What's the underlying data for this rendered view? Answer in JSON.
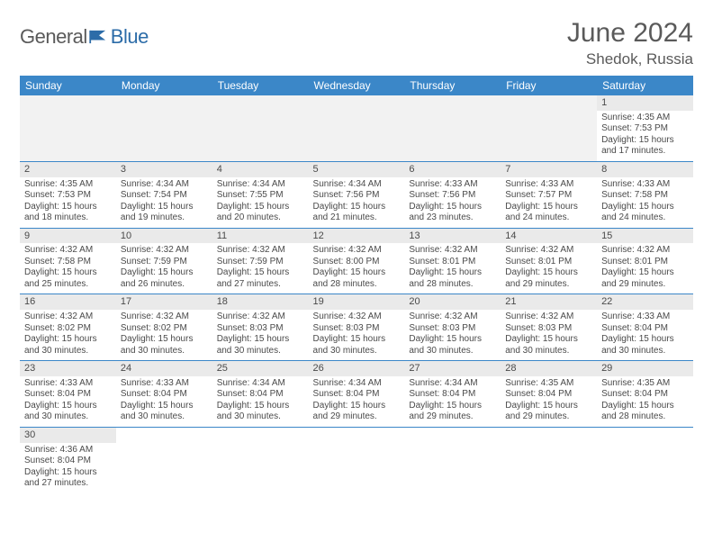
{
  "logo": {
    "general": "General",
    "blue": "Blue"
  },
  "title": {
    "month_year": "June 2024",
    "location": "Shedok, Russia"
  },
  "colors": {
    "header_bg": "#3b87c8",
    "header_text": "#ffffff",
    "daynum_bg": "#eaeaea",
    "blank_bg": "#f2f2f2",
    "cell_border": "#3b87c8",
    "text": "#4a4a4a",
    "logo_gray": "#5a5a5a",
    "logo_blue": "#2c6ca8"
  },
  "weekdays": [
    "Sunday",
    "Monday",
    "Tuesday",
    "Wednesday",
    "Thursday",
    "Friday",
    "Saturday"
  ],
  "grid": [
    [
      null,
      null,
      null,
      null,
      null,
      null,
      {
        "n": "1",
        "sr": "Sunrise: 4:35 AM",
        "ss": "Sunset: 7:53 PM",
        "d1": "Daylight: 15 hours",
        "d2": "and 17 minutes."
      }
    ],
    [
      {
        "n": "2",
        "sr": "Sunrise: 4:35 AM",
        "ss": "Sunset: 7:53 PM",
        "d1": "Daylight: 15 hours",
        "d2": "and 18 minutes."
      },
      {
        "n": "3",
        "sr": "Sunrise: 4:34 AM",
        "ss": "Sunset: 7:54 PM",
        "d1": "Daylight: 15 hours",
        "d2": "and 19 minutes."
      },
      {
        "n": "4",
        "sr": "Sunrise: 4:34 AM",
        "ss": "Sunset: 7:55 PM",
        "d1": "Daylight: 15 hours",
        "d2": "and 20 minutes."
      },
      {
        "n": "5",
        "sr": "Sunrise: 4:34 AM",
        "ss": "Sunset: 7:56 PM",
        "d1": "Daylight: 15 hours",
        "d2": "and 21 minutes."
      },
      {
        "n": "6",
        "sr": "Sunrise: 4:33 AM",
        "ss": "Sunset: 7:56 PM",
        "d1": "Daylight: 15 hours",
        "d2": "and 23 minutes."
      },
      {
        "n": "7",
        "sr": "Sunrise: 4:33 AM",
        "ss": "Sunset: 7:57 PM",
        "d1": "Daylight: 15 hours",
        "d2": "and 24 minutes."
      },
      {
        "n": "8",
        "sr": "Sunrise: 4:33 AM",
        "ss": "Sunset: 7:58 PM",
        "d1": "Daylight: 15 hours",
        "d2": "and 24 minutes."
      }
    ],
    [
      {
        "n": "9",
        "sr": "Sunrise: 4:32 AM",
        "ss": "Sunset: 7:58 PM",
        "d1": "Daylight: 15 hours",
        "d2": "and 25 minutes."
      },
      {
        "n": "10",
        "sr": "Sunrise: 4:32 AM",
        "ss": "Sunset: 7:59 PM",
        "d1": "Daylight: 15 hours",
        "d2": "and 26 minutes."
      },
      {
        "n": "11",
        "sr": "Sunrise: 4:32 AM",
        "ss": "Sunset: 7:59 PM",
        "d1": "Daylight: 15 hours",
        "d2": "and 27 minutes."
      },
      {
        "n": "12",
        "sr": "Sunrise: 4:32 AM",
        "ss": "Sunset: 8:00 PM",
        "d1": "Daylight: 15 hours",
        "d2": "and 28 minutes."
      },
      {
        "n": "13",
        "sr": "Sunrise: 4:32 AM",
        "ss": "Sunset: 8:01 PM",
        "d1": "Daylight: 15 hours",
        "d2": "and 28 minutes."
      },
      {
        "n": "14",
        "sr": "Sunrise: 4:32 AM",
        "ss": "Sunset: 8:01 PM",
        "d1": "Daylight: 15 hours",
        "d2": "and 29 minutes."
      },
      {
        "n": "15",
        "sr": "Sunrise: 4:32 AM",
        "ss": "Sunset: 8:01 PM",
        "d1": "Daylight: 15 hours",
        "d2": "and 29 minutes."
      }
    ],
    [
      {
        "n": "16",
        "sr": "Sunrise: 4:32 AM",
        "ss": "Sunset: 8:02 PM",
        "d1": "Daylight: 15 hours",
        "d2": "and 30 minutes."
      },
      {
        "n": "17",
        "sr": "Sunrise: 4:32 AM",
        "ss": "Sunset: 8:02 PM",
        "d1": "Daylight: 15 hours",
        "d2": "and 30 minutes."
      },
      {
        "n": "18",
        "sr": "Sunrise: 4:32 AM",
        "ss": "Sunset: 8:03 PM",
        "d1": "Daylight: 15 hours",
        "d2": "and 30 minutes."
      },
      {
        "n": "19",
        "sr": "Sunrise: 4:32 AM",
        "ss": "Sunset: 8:03 PM",
        "d1": "Daylight: 15 hours",
        "d2": "and 30 minutes."
      },
      {
        "n": "20",
        "sr": "Sunrise: 4:32 AM",
        "ss": "Sunset: 8:03 PM",
        "d1": "Daylight: 15 hours",
        "d2": "and 30 minutes."
      },
      {
        "n": "21",
        "sr": "Sunrise: 4:32 AM",
        "ss": "Sunset: 8:03 PM",
        "d1": "Daylight: 15 hours",
        "d2": "and 30 minutes."
      },
      {
        "n": "22",
        "sr": "Sunrise: 4:33 AM",
        "ss": "Sunset: 8:04 PM",
        "d1": "Daylight: 15 hours",
        "d2": "and 30 minutes."
      }
    ],
    [
      {
        "n": "23",
        "sr": "Sunrise: 4:33 AM",
        "ss": "Sunset: 8:04 PM",
        "d1": "Daylight: 15 hours",
        "d2": "and 30 minutes."
      },
      {
        "n": "24",
        "sr": "Sunrise: 4:33 AM",
        "ss": "Sunset: 8:04 PM",
        "d1": "Daylight: 15 hours",
        "d2": "and 30 minutes."
      },
      {
        "n": "25",
        "sr": "Sunrise: 4:34 AM",
        "ss": "Sunset: 8:04 PM",
        "d1": "Daylight: 15 hours",
        "d2": "and 30 minutes."
      },
      {
        "n": "26",
        "sr": "Sunrise: 4:34 AM",
        "ss": "Sunset: 8:04 PM",
        "d1": "Daylight: 15 hours",
        "d2": "and 29 minutes."
      },
      {
        "n": "27",
        "sr": "Sunrise: 4:34 AM",
        "ss": "Sunset: 8:04 PM",
        "d1": "Daylight: 15 hours",
        "d2": "and 29 minutes."
      },
      {
        "n": "28",
        "sr": "Sunrise: 4:35 AM",
        "ss": "Sunset: 8:04 PM",
        "d1": "Daylight: 15 hours",
        "d2": "and 29 minutes."
      },
      {
        "n": "29",
        "sr": "Sunrise: 4:35 AM",
        "ss": "Sunset: 8:04 PM",
        "d1": "Daylight: 15 hours",
        "d2": "and 28 minutes."
      }
    ],
    [
      {
        "n": "30",
        "sr": "Sunrise: 4:36 AM",
        "ss": "Sunset: 8:04 PM",
        "d1": "Daylight: 15 hours",
        "d2": "and 27 minutes."
      },
      null,
      null,
      null,
      null,
      null,
      null
    ]
  ]
}
